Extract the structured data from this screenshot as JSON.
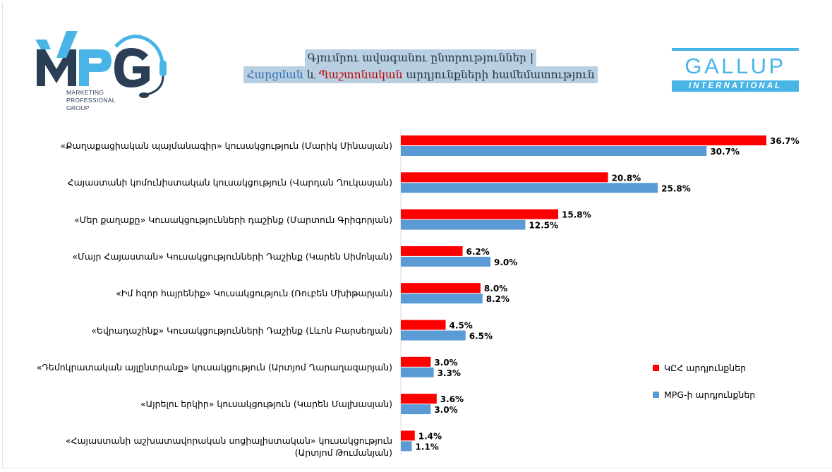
{
  "header": {
    "mpg_logo_text": "MPG",
    "mpg_subtitle": "MARKETING\nPROFESSIONAL\nGROUP",
    "title_line1": "Գյումրու ավագանու ընտրություններ |",
    "title_line2_part1": "Հարցման",
    "title_line2_part2": " և ",
    "title_line2_part3": "Պաշտոնական",
    "title_line2_part4": " արդյունքների համեմատություն",
    "gallup_name": "GALLUP",
    "gallup_intl": "INTERNATIONAL"
  },
  "colors": {
    "official": "#ff0000",
    "mpg": "#5b9bd5",
    "title_bg": "#b9cfe2",
    "gallup": "#49b5e7"
  },
  "chart_data": {
    "type": "bar",
    "orientation": "horizontal",
    "categories": [
      "«Քաղաքացիական պայմանագիր» կուսակցություն (Մարիկ Մինասյան)",
      "Հայաստանի կոմունիստական կուսակցություն (Վարդան Ղուկասյան)",
      "«Մեր քաղաքը» Կուսակցությունների դաշինք (Մարտուն Գրիգորյան)",
      "«Մայր Հայաստան» Կուսակցությունների Դաշինք  (Կարեն Սիմոնյան)",
      "«Իմ հզոր հայրենիք» Կուսակցություն (Ռուբեն Մխիթարյան)",
      "«Եվրադաշինք» Կուսակցությունների Դաշինք (Լևոն Բարսեղյան)",
      "«Դեմոկրատական այլընտրանք» կուսակցություն (Արտյոմ Ղարաղազարյան)",
      "«Այրելու երկիր» կուսակցություն (Կարեն Մալխասյան)",
      "«Հայաստանի աշխատավորական սոցիալիստական» կուսակցություն\n(Արտյոմ Թումանյան)"
    ],
    "series": [
      {
        "name": "ԿԸՀ արդյունքներ",
        "values": [
          36.7,
          20.8,
          15.8,
          6.2,
          8.0,
          4.5,
          3.0,
          3.6,
          1.4
        ]
      },
      {
        "name": "MPG-ի արդյունքներ",
        "values": [
          30.7,
          25.8,
          12.5,
          9.0,
          8.2,
          6.5,
          3.3,
          3.0,
          1.1
        ]
      }
    ],
    "value_labels": [
      [
        "36.7%",
        "20.8%",
        "15.8%",
        "6.2%",
        "8.0%",
        "4.5%",
        "3.0%",
        "3.6%",
        "1.4%"
      ],
      [
        "30.7%",
        "25.8%",
        "12.5%",
        "9.0%",
        "8.2%",
        "6.5%",
        "3.3%",
        "3.0%",
        "1.1%"
      ]
    ],
    "xlim": [
      0,
      38
    ],
    "legend_position": "right",
    "grid": false
  }
}
